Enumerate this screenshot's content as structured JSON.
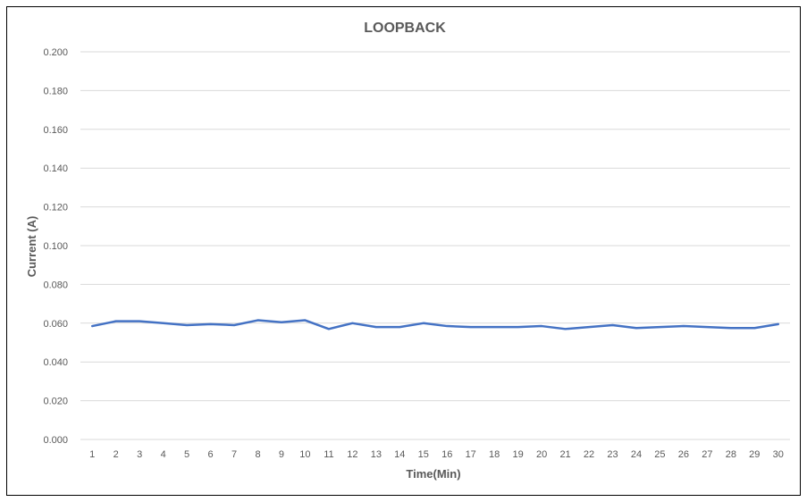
{
  "chart_data": {
    "type": "line",
    "title": "LOOPBACK",
    "xlabel": "Time(Min)",
    "ylabel": "Current (A)",
    "categories": [
      "1",
      "2",
      "3",
      "4",
      "5",
      "6",
      "7",
      "8",
      "9",
      "10",
      "11",
      "12",
      "13",
      "14",
      "15",
      "16",
      "17",
      "18",
      "19",
      "20",
      "21",
      "22",
      "23",
      "24",
      "25",
      "26",
      "27",
      "28",
      "29",
      "30"
    ],
    "ylim": [
      0,
      0.2
    ],
    "yticks": [
      "0.000",
      "0.020",
      "0.040",
      "0.060",
      "0.080",
      "0.100",
      "0.120",
      "0.140",
      "0.160",
      "0.180",
      "0.200"
    ],
    "grid": true,
    "legend": "none",
    "series": [
      {
        "color": "#4472c4",
        "values": [
          0.0585,
          0.061,
          0.061,
          0.06,
          0.059,
          0.0595,
          0.059,
          0.0615,
          0.0605,
          0.0615,
          0.057,
          0.06,
          0.058,
          0.058,
          0.06,
          0.0585,
          0.058,
          0.058,
          0.058,
          0.0585,
          0.057,
          0.058,
          0.059,
          0.0575,
          0.058,
          0.0585,
          0.058,
          0.0575,
          0.0575,
          0.0595
        ]
      }
    ]
  }
}
